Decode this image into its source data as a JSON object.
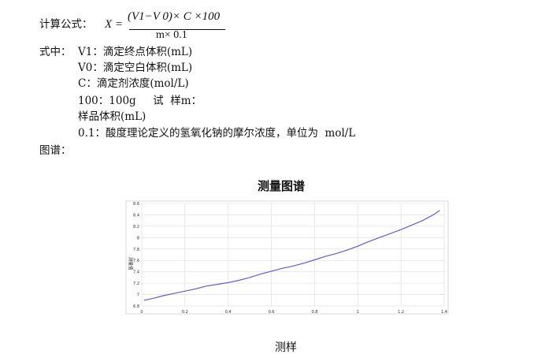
{
  "formula": {
    "label": "计算公式：",
    "lhs": "X =",
    "numerator": "(V1−V 0)× C ×100",
    "denominator": "m× 0.1"
  },
  "definitions": {
    "heading": "式中：",
    "lines": [
      "V1：滴定终点体积(mL)",
      "V0：滴定空白体积(mL)",
      "C：滴定剂浓度(mol/L)",
      "100：100g     试  样m：",
      "样品体积(mL)",
      "0.1：酸度理论定义的氢氧化钠的摩尔浓度，单位为  mol/L"
    ]
  },
  "spectrum_label": "图谱：",
  "caption": "测样",
  "chart_data": {
    "type": "line",
    "title": "测量图谱",
    "ylabel": "测量值",
    "xlim": [
      0,
      1.4
    ],
    "ylim": [
      6.8,
      8.6
    ],
    "x_ticks": [
      "0",
      "0.2",
      "0.4",
      "0.6",
      "0.8",
      "1",
      "1.2",
      "1.4"
    ],
    "y_ticks": [
      "6.8",
      "7",
      "7.2",
      "7.4",
      "7.6",
      "7.8",
      "8",
      "8.2",
      "8.4",
      "8.6"
    ],
    "grid": true,
    "series": [
      {
        "color": "#6a5acd",
        "x": [
          0.01,
          0.05,
          0.1,
          0.15,
          0.2,
          0.25,
          0.3,
          0.35,
          0.4,
          0.45,
          0.5,
          0.55,
          0.6,
          0.65,
          0.7,
          0.75,
          0.8,
          0.85,
          0.9,
          0.95,
          1.0,
          1.05,
          1.1,
          1.15,
          1.2,
          1.25,
          1.3,
          1.35,
          1.38
        ],
        "y": [
          6.9,
          6.93,
          6.98,
          7.02,
          7.06,
          7.1,
          7.15,
          7.18,
          7.21,
          7.25,
          7.3,
          7.36,
          7.41,
          7.46,
          7.5,
          7.55,
          7.61,
          7.67,
          7.72,
          7.78,
          7.85,
          7.93,
          8.0,
          8.07,
          8.14,
          8.22,
          8.3,
          8.4,
          8.48
        ]
      }
    ]
  }
}
